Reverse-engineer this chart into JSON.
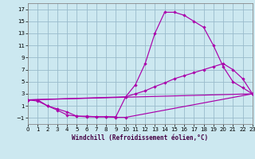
{
  "xlabel": "Windchill (Refroidissement éolien,°C)",
  "background_color": "#cce8f0",
  "line_color": "#aa00aa",
  "grid_color": "#99bbcc",
  "xlim": [
    0,
    23
  ],
  "ylim": [
    -2,
    18
  ],
  "xticks": [
    0,
    1,
    2,
    3,
    4,
    5,
    6,
    7,
    8,
    9,
    10,
    11,
    12,
    13,
    14,
    15,
    16,
    17,
    18,
    19,
    20,
    21,
    22,
    23
  ],
  "yticks": [
    -1,
    1,
    3,
    5,
    7,
    9,
    11,
    13,
    15,
    17
  ],
  "line1_x": [
    0,
    1,
    2,
    3,
    4,
    5,
    6,
    7,
    8,
    9,
    10,
    11,
    12,
    13,
    14,
    15,
    16,
    17,
    18,
    19,
    20,
    21,
    22,
    23
  ],
  "line1_y": [
    2,
    2,
    1,
    0.5,
    0,
    -0.7,
    -0.7,
    -0.8,
    -0.8,
    -0.8,
    2.5,
    4.5,
    8,
    13,
    16.5,
    16.5,
    16,
    15,
    14,
    11,
    7.5,
    5,
    4,
    3
  ],
  "line2_x": [
    0,
    10,
    11,
    12,
    13,
    14,
    15,
    16,
    17,
    18,
    19,
    20,
    21,
    22,
    23
  ],
  "line2_y": [
    2,
    2.5,
    3,
    3.5,
    4.2,
    4.8,
    5.5,
    6,
    6.5,
    7,
    7.5,
    8,
    7,
    5.5,
    3
  ],
  "line3_x": [
    0,
    1,
    2,
    3,
    4,
    5,
    6,
    7,
    8,
    9,
    10,
    23
  ],
  "line3_y": [
    2,
    1.8,
    1,
    0.3,
    -0.5,
    -0.7,
    -0.8,
    -0.8,
    -0.8,
    -0.9,
    -0.9,
    3
  ],
  "line4_x": [
    0,
    23
  ],
  "line4_y": [
    2,
    3
  ],
  "xlabel_fontsize": 5.5,
  "tick_fontsize": 5.0,
  "xlabel_color": "#440044",
  "xlabel_family": "monospace"
}
